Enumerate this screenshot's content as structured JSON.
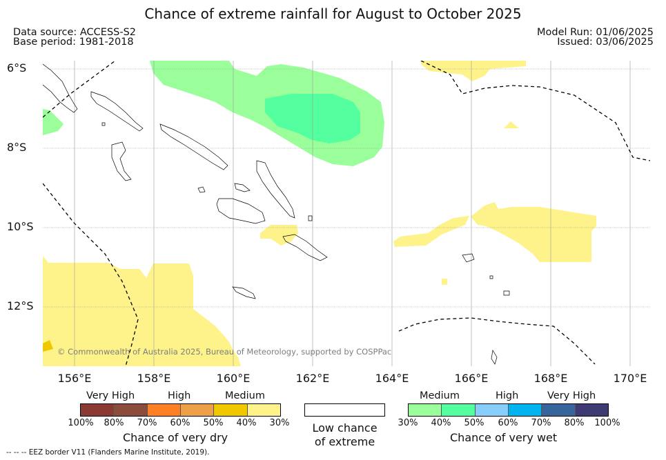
{
  "title": "Chance of extreme rainfall for August to October 2025",
  "header": {
    "data_source": "Data source: ACCESS-S2",
    "base_period": "Base period: 1981-2018",
    "model_run": "Model Run: 01/06/2025",
    "issued": "Issued: 03/06/2025"
  },
  "map": {
    "lat_labels": [
      "6°S",
      "8°S",
      "10°S",
      "12°S"
    ],
    "lon_labels": [
      "156°E",
      "158°E",
      "160°E",
      "162°E",
      "164°E",
      "166°E",
      "168°E",
      "170°E"
    ],
    "lon_range": [
      155.2,
      170.5
    ],
    "lat_range": [
      -5.8,
      -13.5
    ],
    "copyright": "© Commonwealth of Australia 2025, Bureau of Meteorology, supported by COSPPac"
  },
  "legend": {
    "dry": {
      "categories": [
        "Very High",
        "High",
        "Medium"
      ],
      "colors": [
        "#8b3a33",
        "#8b4c3c",
        "#ff7f24",
        "#ee9f4a",
        "#f0c800",
        "#fdf38a"
      ],
      "ticks": [
        "100%",
        "80%",
        "70%",
        "60%",
        "50%",
        "40%",
        "30%"
      ],
      "title": "Chance of very dry"
    },
    "neutral": {
      "color": "#ffffff",
      "title_line1": "Low chance",
      "title_line2": "of extreme"
    },
    "wet": {
      "categories": [
        "Medium",
        "High",
        "Very High"
      ],
      "colors": [
        "#9aff9a",
        "#54ff9f",
        "#87cefa",
        "#00b2ee",
        "#36649b",
        "#3e3a74"
      ],
      "ticks": [
        "30%",
        "40%",
        "50%",
        "60%",
        "70%",
        "80%",
        "100%"
      ],
      "title": "Chance of very wet"
    }
  },
  "footnote": "-- -- -- EEZ border V11 (Flanders Marine Institute, 2019)."
}
